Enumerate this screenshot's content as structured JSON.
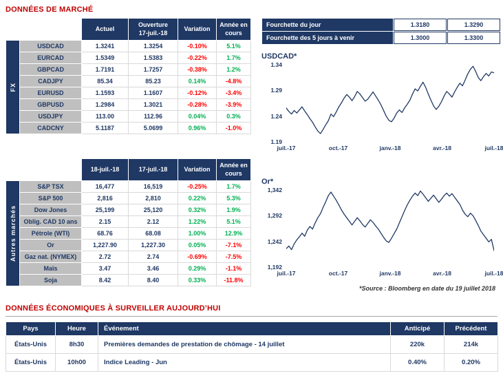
{
  "titles": {
    "market": "DONNÉES DE MARCHÉ",
    "econ": "DONNÉES ÉCONOMIQUES À SURVEILLER AUJOURD’HUI"
  },
  "colors": {
    "navy": "#1F3864",
    "title_red": "#C00000",
    "positive": "#00B050",
    "negative": "#FF0000",
    "label_bg": "#BFBFBF",
    "line": "#1F3864"
  },
  "fx_table": {
    "group": "FX",
    "headers": {
      "col1": "Actuel",
      "col2a": "Ouverture",
      "col2b": "17-juil.-18",
      "col3": "Variation",
      "col4a": "Année en",
      "col4b": "cours"
    },
    "rows": [
      {
        "label": "USDCAD",
        "actual": "1.3241",
        "open": "1.3254",
        "var": "-0.10%",
        "ytd": "5.1%"
      },
      {
        "label": "EURCAD",
        "actual": "1.5349",
        "open": "1.5383",
        "var": "-0.22%",
        "ytd": "1.7%"
      },
      {
        "label": "GBPCAD",
        "actual": "1.7191",
        "open": "1.7257",
        "var": "-0.38%",
        "ytd": "1.2%"
      },
      {
        "label": "CADJPY",
        "actual": "85.34",
        "open": "85.23",
        "var": "0.14%",
        "ytd": "-4.8%"
      },
      {
        "label": "EURUSD",
        "actual": "1.1593",
        "open": "1.1607",
        "var": "-0.12%",
        "ytd": "-3.4%"
      },
      {
        "label": "GBPUSD",
        "actual": "1.2984",
        "open": "1.3021",
        "var": "-0.28%",
        "ytd": "-3.9%"
      },
      {
        "label": "USDJPY",
        "actual": "113.00",
        "open": "112.96",
        "var": "0.04%",
        "ytd": "0.3%"
      },
      {
        "label": "CADCNY",
        "actual": "5.1187",
        "open": "5.0699",
        "var": "0.96%",
        "ytd": "-1.0%"
      }
    ]
  },
  "markets_table": {
    "group": "Autres marchés",
    "headers": {
      "col1": "18-juil.-18",
      "col2": "17-juil.-18",
      "col3": "Variation",
      "col4a": "Année en",
      "col4b": "cours"
    },
    "rows": [
      {
        "label": "S&P TSX",
        "actual": "16,477",
        "open": "16,519",
        "var": "-0.25%",
        "ytd": "1.7%"
      },
      {
        "label": "S&P 500",
        "actual": "2,816",
        "open": "2,810",
        "var": "0.22%",
        "ytd": "5.3%"
      },
      {
        "label": "Dow Jones",
        "actual": "25,199",
        "open": "25,120",
        "var": "0.32%",
        "ytd": "1.9%"
      },
      {
        "label": "Oblig. CAD 10 ans",
        "actual": "2.15",
        "open": "2.12",
        "var": "1.22%",
        "ytd": "5.1%"
      },
      {
        "label": "Pétrole (WTI)",
        "actual": "68.76",
        "open": "68.08",
        "var": "1.00%",
        "ytd": "12.9%"
      },
      {
        "label": "Or",
        "actual": "1,227.90",
        "open": "1,227.30",
        "var": "0.05%",
        "ytd": "-7.1%"
      },
      {
        "label": "Gaz nat. (NYMEX)",
        "actual": "2.72",
        "open": "2.74",
        "var": "-0.69%",
        "ytd": "-7.5%"
      },
      {
        "label": "Maïs",
        "actual": "3.47",
        "open": "3.46",
        "var": "0.29%",
        "ytd": "-1.1%"
      },
      {
        "label": "Soja",
        "actual": "8.42",
        "open": "8.40",
        "var": "0.33%",
        "ytd": "-11.8%"
      }
    ]
  },
  "ranges": {
    "rows": [
      {
        "label": "Fourchette du jour",
        "low": "1.3180",
        "high": "1.3290"
      },
      {
        "label": "Fourchette des 5 jours à venir",
        "low": "1.3000",
        "high": "1.3300"
      }
    ]
  },
  "source_note": "*Source : Bloomberg en date du  19 juillet 2018",
  "chart_data": [
    {
      "type": "line",
      "title": "USDCAD*",
      "xlabel": "",
      "ylabel": "",
      "ylim": [
        1.19,
        1.34
      ],
      "yticks": [
        "1.34",
        "1.29",
        "1.24",
        "1.19"
      ],
      "xticks": [
        "juil.-17",
        "oct.-17",
        "janv.-18",
        "avr.-18",
        "juil.-18"
      ],
      "legend": "none",
      "grid": false,
      "color": "#1F3864",
      "values": [
        1.256,
        1.249,
        1.244,
        1.251,
        1.246,
        1.252,
        1.258,
        1.25,
        1.243,
        1.235,
        1.228,
        1.219,
        1.211,
        1.206,
        1.214,
        1.223,
        1.231,
        1.244,
        1.239,
        1.248,
        1.258,
        1.266,
        1.275,
        1.282,
        1.277,
        1.27,
        1.278,
        1.288,
        1.283,
        1.276,
        1.269,
        1.273,
        1.28,
        1.287,
        1.279,
        1.271,
        1.262,
        1.251,
        1.24,
        1.232,
        1.229,
        1.236,
        1.246,
        1.252,
        1.247,
        1.256,
        1.263,
        1.271,
        1.283,
        1.293,
        1.289,
        1.298,
        1.306,
        1.296,
        1.283,
        1.271,
        1.26,
        1.253,
        1.259,
        1.268,
        1.279,
        1.288,
        1.283,
        1.277,
        1.287,
        1.296,
        1.304,
        1.299,
        1.31,
        1.322,
        1.331,
        1.337,
        1.327,
        1.315,
        1.309,
        1.317,
        1.323,
        1.318,
        1.326,
        1.324
      ]
    },
    {
      "type": "line",
      "title": "Or*",
      "xlabel": "",
      "ylabel": "",
      "ylim": [
        1192,
        1342
      ],
      "yticks": [
        "1,342",
        "1,292",
        "1,242",
        "1,192"
      ],
      "xticks": [
        "juil.-17",
        "oct.-17",
        "janv.-18",
        "avr.-18",
        "juil.-18"
      ],
      "legend": "none",
      "grid": false,
      "color": "#1F3864",
      "values": [
        1228,
        1233,
        1226,
        1237,
        1245,
        1251,
        1258,
        1252,
        1264,
        1271,
        1266,
        1278,
        1288,
        1296,
        1308,
        1319,
        1331,
        1338,
        1330,
        1322,
        1313,
        1303,
        1295,
        1288,
        1281,
        1274,
        1281,
        1288,
        1282,
        1275,
        1270,
        1277,
        1284,
        1279,
        1272,
        1266,
        1258,
        1250,
        1243,
        1240,
        1248,
        1257,
        1266,
        1278,
        1290,
        1302,
        1313,
        1322,
        1330,
        1336,
        1331,
        1340,
        1334,
        1327,
        1320,
        1326,
        1332,
        1325,
        1318,
        1324,
        1331,
        1336,
        1330,
        1335,
        1328,
        1321,
        1314,
        1303,
        1295,
        1290,
        1297,
        1292,
        1283,
        1273,
        1262,
        1255,
        1248,
        1241,
        1246,
        1224
      ]
    }
  ],
  "econ_table": {
    "headers": [
      "Pays",
      "Heure",
      "Événement",
      "Anticipé",
      "Précédent"
    ],
    "rows": [
      {
        "pays": "États-Unis",
        "heure": "8h30",
        "event": "Premières demandes de prestation de chômage - 14 juillet",
        "anticipe": "220k",
        "precedent": "214k"
      },
      {
        "pays": "États-Unis",
        "heure": "10h00",
        "event": "Indice Leading - Jun",
        "anticipe": "0.40%",
        "precedent": "0.20%"
      }
    ]
  }
}
